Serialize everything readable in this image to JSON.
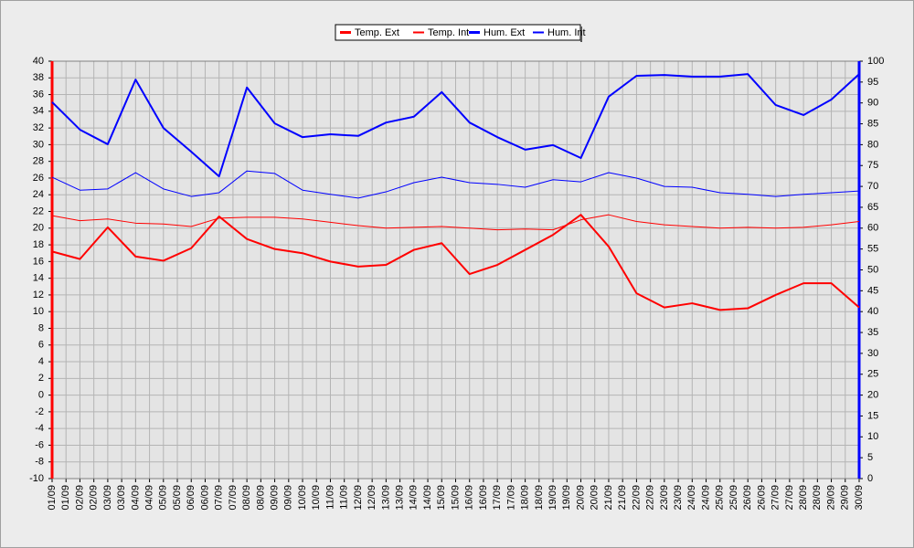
{
  "chart_data": {
    "type": "line",
    "categories": [
      "01/09",
      "02/09",
      "03/09",
      "04/09",
      "05/09",
      "06/09",
      "07/09",
      "08/09",
      "09/09",
      "10/09",
      "11/09",
      "12/09",
      "13/09",
      "14/09",
      "15/09",
      "16/09",
      "17/09",
      "18/09",
      "19/09",
      "20/09",
      "21/09",
      "22/09",
      "23/09",
      "24/09",
      "25/09",
      "26/09",
      "27/09",
      "28/09",
      "29/09",
      "30/09"
    ],
    "series": [
      {
        "name": "Temp. Ext",
        "color": "#ff0000",
        "width": 2,
        "values": [
          17.2,
          16.3,
          20.1,
          16.6,
          16.1,
          17.6,
          21.4,
          18.7,
          17.5,
          17.0,
          16.0,
          15.4,
          15.6,
          17.4,
          18.2,
          14.5,
          15.6,
          17.4,
          19.2,
          21.6,
          17.8,
          12.2,
          10.5,
          11.0,
          10.2,
          10.4,
          12.0,
          13.4,
          13.4,
          10.5
        ]
      },
      {
        "name": "Temp. Int",
        "color": "#ff0000",
        "width": 1,
        "values": [
          21.5,
          20.9,
          21.1,
          20.6,
          20.5,
          20.2,
          21.2,
          21.3,
          21.3,
          21.1,
          20.7,
          20.3,
          20.0,
          20.1,
          20.2,
          20.0,
          19.8,
          19.9,
          19.8,
          21.0,
          21.6,
          20.8,
          20.4,
          20.2,
          20.0,
          20.1,
          20.0,
          20.1,
          20.4,
          20.8
        ]
      },
      {
        "name": "Hum. Ext",
        "color": "#0000ff",
        "width": 2,
        "axis": "y2",
        "values": [
          90.2,
          83.6,
          80.1,
          95.6,
          84.0,
          78.3,
          72.4,
          93.7,
          85.1,
          81.8,
          82.5,
          82.1,
          85.3,
          86.7,
          92.6,
          85.3,
          81.8,
          78.8,
          79.9,
          76.8,
          91.5,
          96.5,
          96.7,
          96.3,
          96.3,
          96.9,
          89.5,
          87.1,
          90.8,
          96.9
        ]
      },
      {
        "name": "Hum. Int",
        "color": "#0000ff",
        "width": 1,
        "axis": "y2",
        "values": [
          72.2,
          69.1,
          69.4,
          73.3,
          69.4,
          67.6,
          68.5,
          73.7,
          73.1,
          69.1,
          68.1,
          67.2,
          68.7,
          70.9,
          72.2,
          70.9,
          70.5,
          69.8,
          71.6,
          71.1,
          73.3,
          72.0,
          70.0,
          69.8,
          68.5,
          68.1,
          67.6,
          68.1,
          68.5,
          68.9
        ]
      }
    ],
    "ylim": [
      -10,
      40
    ],
    "yticks": [
      -10,
      -8,
      -6,
      -4,
      -2,
      0,
      2,
      4,
      6,
      8,
      10,
      12,
      14,
      16,
      18,
      20,
      22,
      24,
      26,
      28,
      30,
      32,
      34,
      36,
      38,
      40
    ],
    "y2lim": [
      0,
      100
    ],
    "y2ticks": [
      0,
      5,
      10,
      15,
      20,
      25,
      30,
      35,
      40,
      45,
      50,
      55,
      60,
      65,
      70,
      75,
      80,
      85,
      90,
      95,
      100
    ],
    "grid": true,
    "legend": "top"
  }
}
